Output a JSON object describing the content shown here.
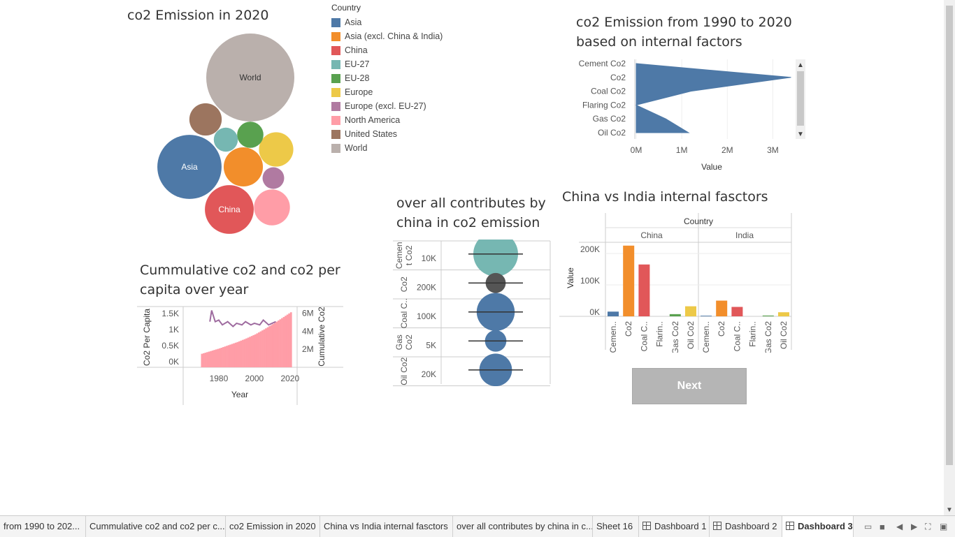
{
  "bubble_chart": {
    "title": "co2 Emission in 2020",
    "labels": {
      "world": "World",
      "asia": "Asia",
      "china": "China"
    }
  },
  "legend": {
    "title": "Country",
    "items": [
      {
        "label": "Asia",
        "color": "#4e79a7"
      },
      {
        "label": "Asia (excl. China & India)",
        "color": "#f28e2b"
      },
      {
        "label": "China",
        "color": "#e15759"
      },
      {
        "label": "EU-27",
        "color": "#76b7b2"
      },
      {
        "label": "EU-28",
        "color": "#59a14f"
      },
      {
        "label": "Europe",
        "color": "#edc948"
      },
      {
        "label": "Europe (excl. EU-27)",
        "color": "#b07aa1"
      },
      {
        "label": "North America",
        "color": "#ff9da7"
      },
      {
        "label": "United States",
        "color": "#9c755f"
      },
      {
        "label": "World",
        "color": "#bab0ac"
      }
    ]
  },
  "area_chart": {
    "title": "co2 Emission from 1990 to 2020\nbased on internal factors",
    "xlabel": "Value"
  },
  "cumulative_chart": {
    "title": "Cummulative co2 and co2 per\ncapita  over year",
    "ylabel_left": "Co2 Per Capita",
    "ylabel_right": "Cumulative Co2",
    "xlabel": "Year"
  },
  "contrib_chart": {
    "title": "over all contributes by\nchina in co2 emission"
  },
  "china_india_chart": {
    "title": "China vs India internal fasctors",
    "header": "Country",
    "ylabel": "Value"
  },
  "next_button": {
    "label": "Next"
  },
  "tabs": [
    {
      "label": "from 1990 to 202..."
    },
    {
      "label": "Cummulative co2 and co2 per c..."
    },
    {
      "label": "co2 Emission in 2020"
    },
    {
      "label": "China vs India internal fasctors"
    },
    {
      "label": "over all contributes by china in c..."
    },
    {
      "label": "Sheet 16"
    },
    {
      "label": "Dashboard 1"
    },
    {
      "label": "Dashboard 2"
    },
    {
      "label": "Dashboard 3"
    }
  ],
  "chart_data": [
    {
      "type": "bubble",
      "title": "co2 Emission in 2020",
      "categories": [
        "World",
        "Asia",
        "China",
        "Asia (excl. China & India)",
        "North America",
        "Europe",
        "United States",
        "EU-28",
        "EU-27",
        "Europe (excl. EU-27)"
      ],
      "colors": [
        "#bab0ac",
        "#4e79a7",
        "#e15759",
        "#f28e2b",
        "#ff9da7",
        "#edc948",
        "#9c755f",
        "#59a14f",
        "#76b7b2",
        "#b07aa1"
      ],
      "values": [
        34800,
        18500,
        10700,
        6900,
        5800,
        5300,
        4700,
        3100,
        2600,
        2100
      ]
    },
    {
      "type": "area",
      "title": "co2 Emission from 1990 to 2020 based on internal factors",
      "categories": [
        "Cement Co2",
        "Co2",
        "Coal Co2",
        "Flaring Co2",
        "Gas Co2",
        "Oil Co2"
      ],
      "values": [
        0,
        3400000,
        1200000,
        0,
        650000,
        1150000
      ],
      "xlabel": "Value",
      "xticks": [
        "0M",
        "1M",
        "2M",
        "3M"
      ],
      "xlim": [
        0,
        3500000
      ],
      "color": "#4e79a7"
    },
    {
      "type": "bar+line",
      "title": "Cummulative co2 and co2 per capita  over year",
      "xlabel": "Year",
      "xticks": [
        "1980",
        "2000",
        "2020"
      ],
      "xlim": [
        1960,
        2024
      ],
      "series": [
        {
          "name": "Cumulative Co2",
          "x": [
            1970,
            1975,
            1980,
            1985,
            1990,
            1995,
            2000,
            2005,
            2010,
            2015,
            2020
          ],
          "values": [
            1500000,
            1800000,
            2100000,
            2450000,
            2800000,
            3200000,
            3650000,
            4200000,
            4800000,
            5450000,
            6100000
          ],
          "color": "#ff9da7",
          "ylim": [
            0,
            6500000
          ],
          "yticks": [
            "2M",
            "4M",
            "6M"
          ]
        },
        {
          "name": "Co2 Per Capita",
          "x": [
            1975,
            1976,
            1978,
            1980,
            1982,
            1985,
            1988,
            1990,
            1993,
            1995,
            1998,
            2000,
            2003,
            2005,
            2008,
            2010,
            2012
          ],
          "values": [
            1250,
            1600,
            1250,
            1300,
            1150,
            1250,
            1100,
            1200,
            1150,
            1250,
            1150,
            1200,
            1150,
            1300,
            1150,
            1200,
            1250
          ],
          "color": "#9e6b9f",
          "ylim": [
            0,
            1700
          ],
          "yticks": [
            "0K",
            "0.5K",
            "1K",
            "1.5K"
          ]
        }
      ]
    },
    {
      "type": "circle",
      "title": "over all contributes by china in co2 emission",
      "categories": [
        "Cement Co2",
        "Co2",
        "Coal Co2",
        "Gas Co2",
        "Oil Co2"
      ],
      "tick_labels": [
        "10K",
        "200K",
        "100K",
        "5K",
        "20K"
      ],
      "colors": [
        "#76b7b2",
        "#555555",
        "#4e79a7",
        "#4e79a7",
        "#4e79a7"
      ],
      "relative_size": [
        1.0,
        0.45,
        0.85,
        0.48,
        0.73
      ]
    },
    {
      "type": "bar",
      "title": "China vs India internal fasctors",
      "categories": [
        "Cement Co2",
        "Co2",
        "Coal Co2",
        "Flaring Co2",
        "Gas Co2",
        "Oil Co2"
      ],
      "category_ticks": [
        "Cemen..",
        "Co2",
        "Coal C..",
        "Flarin..",
        "Gas Co2",
        "Oil Co2"
      ],
      "panels": [
        "China",
        "India"
      ],
      "ylabel": "Value",
      "yticks": [
        "0K",
        "100K",
        "200K"
      ],
      "ylim": [
        0,
        230000
      ],
      "series": [
        {
          "name": "China",
          "values": [
            15000,
            225000,
            165000,
            0,
            7000,
            32000
          ]
        },
        {
          "name": "India",
          "values": [
            2000,
            50000,
            30000,
            0,
            2500,
            13000
          ]
        }
      ],
      "colors": [
        "#4e79a7",
        "#f28e2b",
        "#e15759",
        "#76b7b2",
        "#59a14f",
        "#edc948"
      ]
    }
  ]
}
